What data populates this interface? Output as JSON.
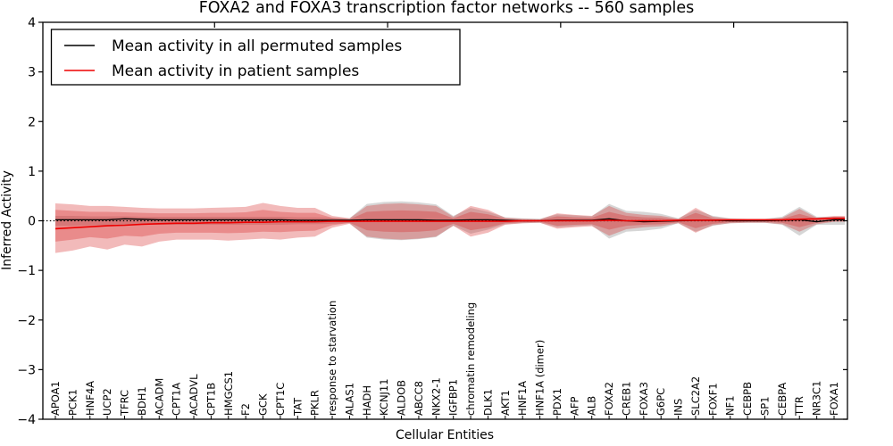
{
  "chart_data": {
    "type": "line",
    "title": "FOXA2 and FOXA3 transcription factor networks -- 560 samples",
    "xlabel": "Cellular Entities",
    "ylabel": "Inferred Activity",
    "ylim": [
      -4,
      4
    ],
    "yticks": [
      -4,
      -3,
      -2,
      -1,
      0,
      1,
      2,
      3,
      4
    ],
    "grid": false,
    "legend_position": "upper left",
    "zero_line": 0,
    "categories": [
      "APOA1",
      "PCK1",
      "HNF4A",
      "UCP2",
      "TFRC",
      "BDH1",
      "ACADM",
      "CPT1A",
      "ACADVL",
      "CPT1B",
      "HMGCS1",
      "F2",
      "GCK",
      "CPT1C",
      "TAT",
      "PKLR",
      "response to starvation",
      "ALAS1",
      "HADH",
      "KCNJ11",
      "ALDOB",
      "ABCC8",
      "NKX2-1",
      "IGFBP1",
      "chromatin remodeling",
      "DLK1",
      "AKT1",
      "HNF1A",
      "HNF1A (dimer)",
      "PDX1",
      "AFP",
      "ALB",
      "FOXA2",
      "CREB1",
      "FOXA3",
      "G6PC",
      "INS",
      "SLC2A2",
      "FOXF1",
      "NF1",
      "CEBPB",
      "SP1",
      "CEBPA",
      "TTR",
      "NR3C1",
      "FOXA1"
    ],
    "series": [
      {
        "id": "permuted-mean-line",
        "name": "Mean activity in all permuted samples",
        "color": "#000000",
        "values": [
          0.02,
          0.02,
          0.02,
          0.02,
          0.04,
          0.03,
          0.02,
          0.02,
          0.02,
          0.02,
          0.02,
          0.02,
          0.02,
          0.02,
          0.01,
          0.01,
          0.01,
          0.01,
          0.02,
          0.02,
          0.02,
          0.02,
          0.01,
          0.01,
          0.02,
          0.02,
          0.01,
          0.0,
          0.0,
          0.01,
          0.01,
          0.01,
          0.04,
          0.0,
          -0.02,
          -0.01,
          0.0,
          0.01,
          0.01,
          0.0,
          0.0,
          0.0,
          0.01,
          0.02,
          -0.02,
          0.02
        ]
      },
      {
        "id": "patient-mean-line",
        "name": "Mean activity in patient samples",
        "color": "#ee0000",
        "values": [
          -0.16,
          -0.14,
          -0.12,
          -0.1,
          -0.09,
          -0.07,
          -0.06,
          -0.05,
          -0.05,
          -0.04,
          -0.04,
          -0.03,
          -0.03,
          -0.02,
          -0.02,
          -0.02,
          -0.01,
          -0.01,
          -0.01,
          -0.01,
          -0.01,
          -0.01,
          -0.01,
          -0.01,
          -0.01,
          -0.01,
          -0.01,
          0.0,
          0.0,
          0.0,
          0.0,
          0.0,
          0.01,
          0.0,
          0.0,
          0.0,
          0.01,
          0.01,
          0.01,
          0.02,
          0.02,
          0.02,
          0.02,
          0.03,
          0.04,
          0.05
        ]
      }
    ],
    "bands": [
      {
        "id": "permuted-std-band",
        "color": "rgba(0,0,0,0.16)",
        "upper": [
          0.1,
          0.1,
          0.09,
          0.09,
          0.09,
          0.08,
          0.08,
          0.08,
          0.08,
          0.08,
          0.08,
          0.08,
          0.08,
          0.08,
          0.07,
          0.07,
          0.06,
          0.05,
          0.34,
          0.38,
          0.39,
          0.37,
          0.33,
          0.1,
          0.26,
          0.18,
          0.07,
          0.05,
          0.04,
          0.13,
          0.11,
          0.09,
          0.34,
          0.2,
          0.18,
          0.14,
          0.05,
          0.22,
          0.1,
          0.05,
          0.04,
          0.04,
          0.08,
          0.28,
          0.08,
          0.08
        ],
        "lower": [
          -0.1,
          -0.1,
          -0.09,
          -0.09,
          -0.09,
          -0.08,
          -0.08,
          -0.08,
          -0.08,
          -0.08,
          -0.08,
          -0.08,
          -0.08,
          -0.08,
          -0.07,
          -0.07,
          -0.06,
          -0.05,
          -0.34,
          -0.38,
          -0.39,
          -0.37,
          -0.33,
          -0.1,
          -0.26,
          -0.18,
          -0.07,
          -0.05,
          -0.04,
          -0.13,
          -0.11,
          -0.09,
          -0.36,
          -0.22,
          -0.2,
          -0.16,
          -0.05,
          -0.22,
          -0.1,
          -0.05,
          -0.04,
          -0.04,
          -0.08,
          -0.3,
          -0.08,
          -0.08
        ]
      },
      {
        "id": "patient-std-band-outer",
        "color": "rgba(214,39,40,0.32)",
        "upper": [
          0.35,
          0.33,
          0.3,
          0.3,
          0.28,
          0.26,
          0.25,
          0.25,
          0.25,
          0.26,
          0.27,
          0.28,
          0.36,
          0.3,
          0.26,
          0.26,
          0.1,
          0.05,
          0.3,
          0.34,
          0.35,
          0.33,
          0.3,
          0.08,
          0.3,
          0.22,
          0.06,
          0.04,
          0.03,
          0.15,
          0.12,
          0.1,
          0.3,
          0.16,
          0.12,
          0.1,
          0.04,
          0.26,
          0.08,
          0.04,
          0.03,
          0.03,
          0.06,
          0.24,
          0.06,
          0.1
        ],
        "lower": [
          -0.65,
          -0.6,
          -0.52,
          -0.58,
          -0.48,
          -0.52,
          -0.42,
          -0.38,
          -0.38,
          -0.38,
          -0.4,
          -0.38,
          -0.36,
          -0.38,
          -0.34,
          -0.32,
          -0.14,
          -0.06,
          -0.32,
          -0.36,
          -0.38,
          -0.36,
          -0.32,
          -0.1,
          -0.32,
          -0.24,
          -0.08,
          -0.05,
          -0.04,
          -0.16,
          -0.13,
          -0.11,
          -0.3,
          -0.17,
          -0.13,
          -0.11,
          -0.05,
          -0.24,
          -0.09,
          -0.05,
          -0.04,
          -0.04,
          -0.07,
          -0.22,
          -0.07,
          -0.02
        ]
      },
      {
        "id": "patient-std-band-inner",
        "color": "rgba(214,39,40,0.32)",
        "upper": [
          0.22,
          0.2,
          0.18,
          0.18,
          0.17,
          0.16,
          0.15,
          0.15,
          0.15,
          0.16,
          0.16,
          0.17,
          0.22,
          0.18,
          0.16,
          0.16,
          0.06,
          0.03,
          0.18,
          0.2,
          0.21,
          0.2,
          0.18,
          0.05,
          0.18,
          0.13,
          0.04,
          0.02,
          0.02,
          0.09,
          0.07,
          0.06,
          0.18,
          0.1,
          0.07,
          0.06,
          0.02,
          0.16,
          0.05,
          0.02,
          0.02,
          0.02,
          0.04,
          0.14,
          0.04,
          0.07
        ],
        "lower": [
          -0.42,
          -0.38,
          -0.33,
          -0.36,
          -0.3,
          -0.32,
          -0.26,
          -0.24,
          -0.24,
          -0.24,
          -0.25,
          -0.24,
          -0.22,
          -0.23,
          -0.21,
          -0.2,
          -0.09,
          -0.04,
          -0.19,
          -0.22,
          -0.23,
          -0.22,
          -0.19,
          -0.06,
          -0.19,
          -0.14,
          -0.05,
          -0.03,
          -0.02,
          -0.1,
          -0.08,
          -0.07,
          -0.18,
          -0.1,
          -0.08,
          -0.07,
          -0.03,
          -0.15,
          -0.06,
          -0.03,
          -0.02,
          -0.02,
          -0.04,
          -0.13,
          -0.04,
          -0.01
        ]
      }
    ],
    "colors": {
      "permuted_line": "#000000",
      "patient_line": "#ee0000",
      "patient_band": "rgba(214,39,40,0.32)",
      "permuted_band": "rgba(0,0,0,0.16)",
      "frame": "#000000"
    }
  }
}
